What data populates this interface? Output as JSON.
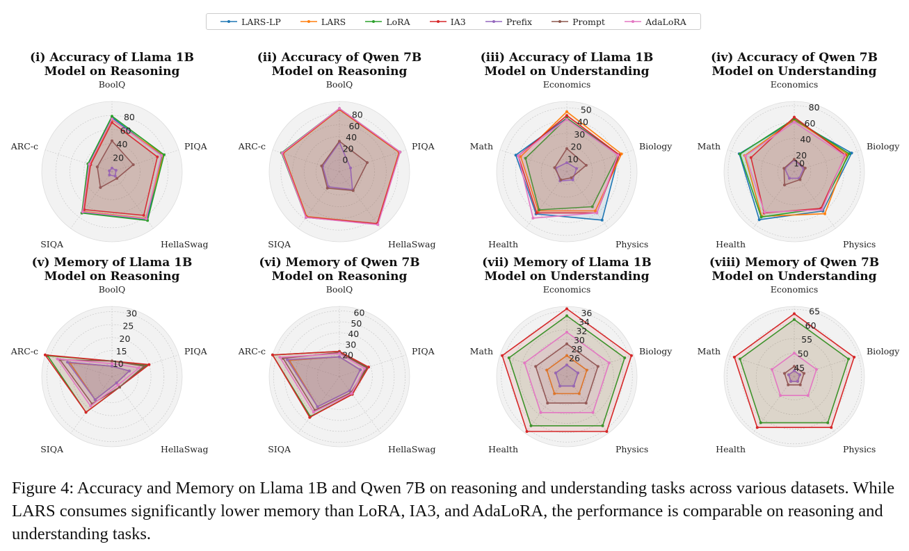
{
  "legend": [
    {
      "name": "LARS-LP",
      "color": "#1f77b4"
    },
    {
      "name": "LARS",
      "color": "#ff7f0e"
    },
    {
      "name": "LoRA",
      "color": "#2ca02c"
    },
    {
      "name": "IA3",
      "color": "#d62728"
    },
    {
      "name": "Prefix",
      "color": "#9467bd"
    },
    {
      "name": "Prompt",
      "color": "#8c564b"
    },
    {
      "name": "AdaLoRA",
      "color": "#e377c2"
    }
  ],
  "caption": "Figure 4: Accuracy and Memory on Llama 1B and Qwen 7B on reasoning and understanding tasks across various datasets. While LARS consumes significantly lower memory than LoRA, IA3, and AdaLoRA, the performance is comparable on reasoning and understanding tasks.",
  "chart_data": [
    {
      "type": "radar",
      "title": [
        "(i) Accuracy of Llama 1B",
        "Model on Reasoning"
      ],
      "axes": [
        "BoolQ",
        "PIQA",
        "HellaSwag",
        "SIQA",
        "ARC-c"
      ],
      "rlim": [
        0,
        100
      ],
      "rticks": [
        20,
        40,
        60,
        80
      ],
      "series": [
        {
          "name": "LARS-LP",
          "values": [
            77,
            75,
            85,
            72,
            35
          ]
        },
        {
          "name": "LARS",
          "values": [
            74,
            77,
            82,
            70,
            33
          ]
        },
        {
          "name": "LoRA",
          "values": [
            79,
            78,
            86,
            73,
            36
          ]
        },
        {
          "name": "IA3",
          "values": [
            70,
            68,
            77,
            67,
            32
          ]
        },
        {
          "name": "Prefix",
          "values": [
            5,
            6,
            8,
            6,
            4
          ]
        },
        {
          "name": "Prompt",
          "values": [
            44,
            32,
            12,
            28,
            22
          ]
        },
        {
          "name": "AdaLoRA",
          "values": [
            75,
            74,
            83,
            71,
            34
          ]
        }
      ]
    },
    {
      "type": "radar",
      "title": [
        "(ii) Accuracy of Qwen 7B",
        "Model on Reasoning"
      ],
      "axes": [
        "BoolQ",
        "PIQA",
        "HellaSwag",
        "SIQA",
        "ARC-c"
      ],
      "rlim": [
        -20,
        100
      ],
      "rticks": [
        0,
        20,
        40,
        60,
        80
      ],
      "series": [
        {
          "name": "LARS-LP",
          "values": [
            87,
            88,
            91,
            76,
            82
          ]
        },
        {
          "name": "LARS",
          "values": [
            86,
            87,
            90,
            75,
            81
          ]
        },
        {
          "name": "LoRA",
          "values": [
            88,
            89,
            91,
            77,
            84
          ]
        },
        {
          "name": "IA3",
          "values": [
            87,
            88,
            90,
            76,
            82
          ]
        },
        {
          "name": "Prefix",
          "values": [
            30,
            0,
            18,
            12,
            10
          ]
        },
        {
          "name": "Prompt",
          "values": [
            32,
            30,
            20,
            15,
            12
          ]
        },
        {
          "name": "AdaLoRA",
          "values": [
            88,
            89,
            92,
            77,
            83
          ]
        }
      ]
    },
    {
      "type": "radar",
      "title": [
        "(iii) Accuracy of Llama 1B",
        "Model on Understanding"
      ],
      "axes": [
        "Economics",
        "Biology",
        "Physics",
        "Health",
        "Math"
      ],
      "rlim": [
        0,
        55
      ],
      "rticks": [
        10,
        20,
        30,
        40,
        50
      ],
      "series": [
        {
          "name": "LARS-LP",
          "values": [
            42,
            43,
            47,
            41,
            42
          ]
        },
        {
          "name": "LARS",
          "values": [
            47,
            45,
            38,
            38,
            38
          ]
        },
        {
          "name": "LoRA",
          "values": [
            42,
            42,
            34,
            37,
            34
          ]
        },
        {
          "name": "IA3",
          "values": [
            44,
            43,
            40,
            40,
            40
          ]
        },
        {
          "name": "Prefix",
          "values": [
            7,
            8,
            8,
            9,
            9
          ]
        },
        {
          "name": "Prompt",
          "values": [
            18,
            16,
            6,
            8,
            10
          ]
        },
        {
          "name": "AdaLoRA",
          "values": [
            41,
            42,
            40,
            45,
            40
          ]
        }
      ]
    },
    {
      "type": "radar",
      "title": [
        "(iv) Accuracy of Qwen 7B",
        "Model on Understanding"
      ],
      "axes": [
        "Economics",
        "Biology",
        "Physics",
        "Health",
        "Math"
      ],
      "rlim": [
        0,
        85
      ],
      "rticks": [
        10,
        20,
        40,
        60,
        80
      ],
      "series": [
        {
          "name": "LARS-LP",
          "values": [
            62,
            73,
            59,
            72,
            70
          ]
        },
        {
          "name": "LARS",
          "values": [
            63,
            68,
            63,
            67,
            63
          ]
        },
        {
          "name": "LoRA",
          "values": [
            64,
            70,
            55,
            68,
            69
          ]
        },
        {
          "name": "IA3",
          "values": [
            66,
            65,
            55,
            62,
            55
          ]
        },
        {
          "name": "Prefix",
          "values": [
            14,
            12,
            10,
            10,
            12
          ]
        },
        {
          "name": "Prompt",
          "values": [
            15,
            14,
            12,
            20,
            13
          ]
        },
        {
          "name": "AdaLoRA",
          "values": [
            60,
            64,
            57,
            61,
            62
          ]
        }
      ]
    },
    {
      "type": "radar",
      "title": [
        "(v) Memory of Llama 1B",
        "Model on Reasoning"
      ],
      "axes": [
        "BoolQ",
        "PIQA",
        "HellaSwag",
        "SIQA",
        "ARC-c"
      ],
      "rlim": [
        5,
        32
      ],
      "rticks": [
        10,
        15,
        20,
        25,
        30
      ],
      "series": [
        {
          "name": "LARS-LP",
          "values": [
            9,
            12,
            8,
            16,
            22
          ]
        },
        {
          "name": "LARS",
          "values": [
            9,
            12,
            8,
            16,
            22
          ]
        },
        {
          "name": "LoRA",
          "values": [
            11,
            19,
            10,
            22,
            31
          ]
        },
        {
          "name": "IA3",
          "values": [
            11,
            20,
            10,
            22,
            32
          ]
        },
        {
          "name": "Prefix",
          "values": [
            9,
            12,
            8,
            16,
            23
          ]
        },
        {
          "name": "Prompt",
          "values": [
            11,
            18,
            10,
            18,
            26
          ]
        },
        {
          "name": "AdaLoRA",
          "values": [
            10,
            16,
            9,
            19,
            27
          ]
        }
      ]
    },
    {
      "type": "radar",
      "title": [
        "(vi) Memory of Qwen 7B",
        "Model on Reasoning"
      ],
      "axes": [
        "BoolQ",
        "PIQA",
        "HellaSwag",
        "SIQA",
        "ARC-c"
      ],
      "rlim": [
        0,
        64
      ],
      "rticks": [
        20,
        30,
        40,
        50,
        60
      ],
      "series": [
        {
          "name": "LARS-LP",
          "values": [
            18,
            20,
            16,
            34,
            48
          ]
        },
        {
          "name": "LARS",
          "values": [
            18,
            20,
            16,
            34,
            48
          ]
        },
        {
          "name": "LoRA",
          "values": [
            23,
            27,
            20,
            45,
            64
          ]
        },
        {
          "name": "IA3",
          "values": [
            23,
            28,
            20,
            46,
            64
          ]
        },
        {
          "name": "Prefix",
          "values": [
            18,
            20,
            16,
            34,
            50
          ]
        },
        {
          "name": "Prompt",
          "values": [
            22,
            26,
            18,
            38,
            54
          ]
        },
        {
          "name": "AdaLoRA",
          "values": [
            21,
            24,
            19,
            40,
            57
          ]
        }
      ]
    },
    {
      "type": "radar",
      "title": [
        "(vii) Memory of Llama 1B",
        "Model on Understanding"
      ],
      "axes": [
        "Economics",
        "Biology",
        "Physics",
        "Health",
        "Math"
      ],
      "rlim": [
        22,
        37
      ],
      "rticks": [
        26,
        28,
        30,
        32,
        34,
        36
      ],
      "series": [
        {
          "name": "LARS-LP",
          "values": [
            24.5,
            24.5,
            24.5,
            24.5,
            24.5
          ]
        },
        {
          "name": "LARS",
          "values": [
            26.5,
            26.5,
            26.5,
            26.5,
            26.5
          ]
        },
        {
          "name": "LoRA",
          "values": [
            35,
            35,
            35,
            35,
            35
          ]
        },
        {
          "name": "IA3",
          "values": [
            36.5,
            36.5,
            36.5,
            36.5,
            36.5
          ]
        },
        {
          "name": "Prefix",
          "values": [
            24.5,
            24.5,
            24.5,
            24.5,
            24.5
          ]
        },
        {
          "name": "Prompt",
          "values": [
            29,
            29,
            29,
            29,
            29
          ]
        },
        {
          "name": "AdaLoRA",
          "values": [
            31.5,
            31.5,
            31.5,
            31.5,
            31.5
          ]
        }
      ]
    },
    {
      "type": "radar",
      "title": [
        "(viii) Memory of Qwen 7B",
        "Model on Understanding"
      ],
      "axes": [
        "Economics",
        "Biology",
        "Physics",
        "Health",
        "Math"
      ],
      "rlim": [
        42,
        66
      ],
      "rticks": [
        45,
        50,
        55,
        60,
        65
      ],
      "series": [
        {
          "name": "LARS-LP",
          "values": [
            44,
            44,
            44,
            44,
            44
          ]
        },
        {
          "name": "LARS",
          "values": [
            44,
            44,
            44,
            44,
            44
          ]
        },
        {
          "name": "LoRA",
          "values": [
            61.5,
            61.5,
            61.5,
            61.5,
            61.5
          ]
        },
        {
          "name": "IA3",
          "values": [
            63.5,
            63.5,
            63.5,
            63.5,
            63.5
          ]
        },
        {
          "name": "Prefix",
          "values": [
            44,
            44,
            44,
            44,
            44
          ]
        },
        {
          "name": "Prompt",
          "values": [
            45.5,
            45.5,
            45.5,
            45.5,
            45.5
          ]
        },
        {
          "name": "AdaLoRA",
          "values": [
            50,
            50,
            50,
            50,
            50
          ]
        }
      ]
    }
  ]
}
